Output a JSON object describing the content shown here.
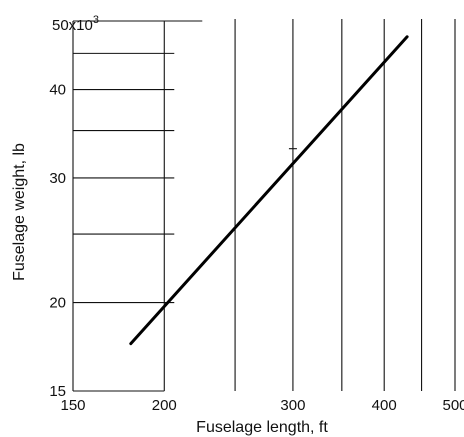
{
  "chart_data": {
    "type": "line",
    "xlabel": "Fuselage length, ft",
    "ylabel": "Fuselage weight, lb",
    "x_scale": "log",
    "y_scale": "log",
    "xlim": [
      150,
      500
    ],
    "ylim": [
      15000,
      50000
    ],
    "x_ticks": [
      {
        "value": 150,
        "label": "150"
      },
      {
        "value": 200,
        "label": "200"
      },
      {
        "value": 300,
        "label": "300"
      },
      {
        "value": 400,
        "label": "400"
      },
      {
        "value": 500,
        "label": "500"
      }
    ],
    "y_ticks": [
      {
        "value": 15000,
        "label": "15"
      },
      {
        "value": 20000,
        "label": "20"
      },
      {
        "value": 30000,
        "label": "30"
      },
      {
        "value": 40000,
        "label": "40"
      }
    ],
    "y_top_label": "50x10",
    "y_top_label_exponent": "3",
    "x_gridlines": [
      200,
      250,
      300,
      350,
      400,
      450,
      500
    ],
    "y_gridlines": [
      20000,
      25000,
      30000,
      35000,
      40000,
      45000,
      50000
    ],
    "grid": true,
    "series": [
      {
        "x": [
          180,
          430
        ],
        "y": [
          17500,
          47500
        ]
      }
    ]
  }
}
